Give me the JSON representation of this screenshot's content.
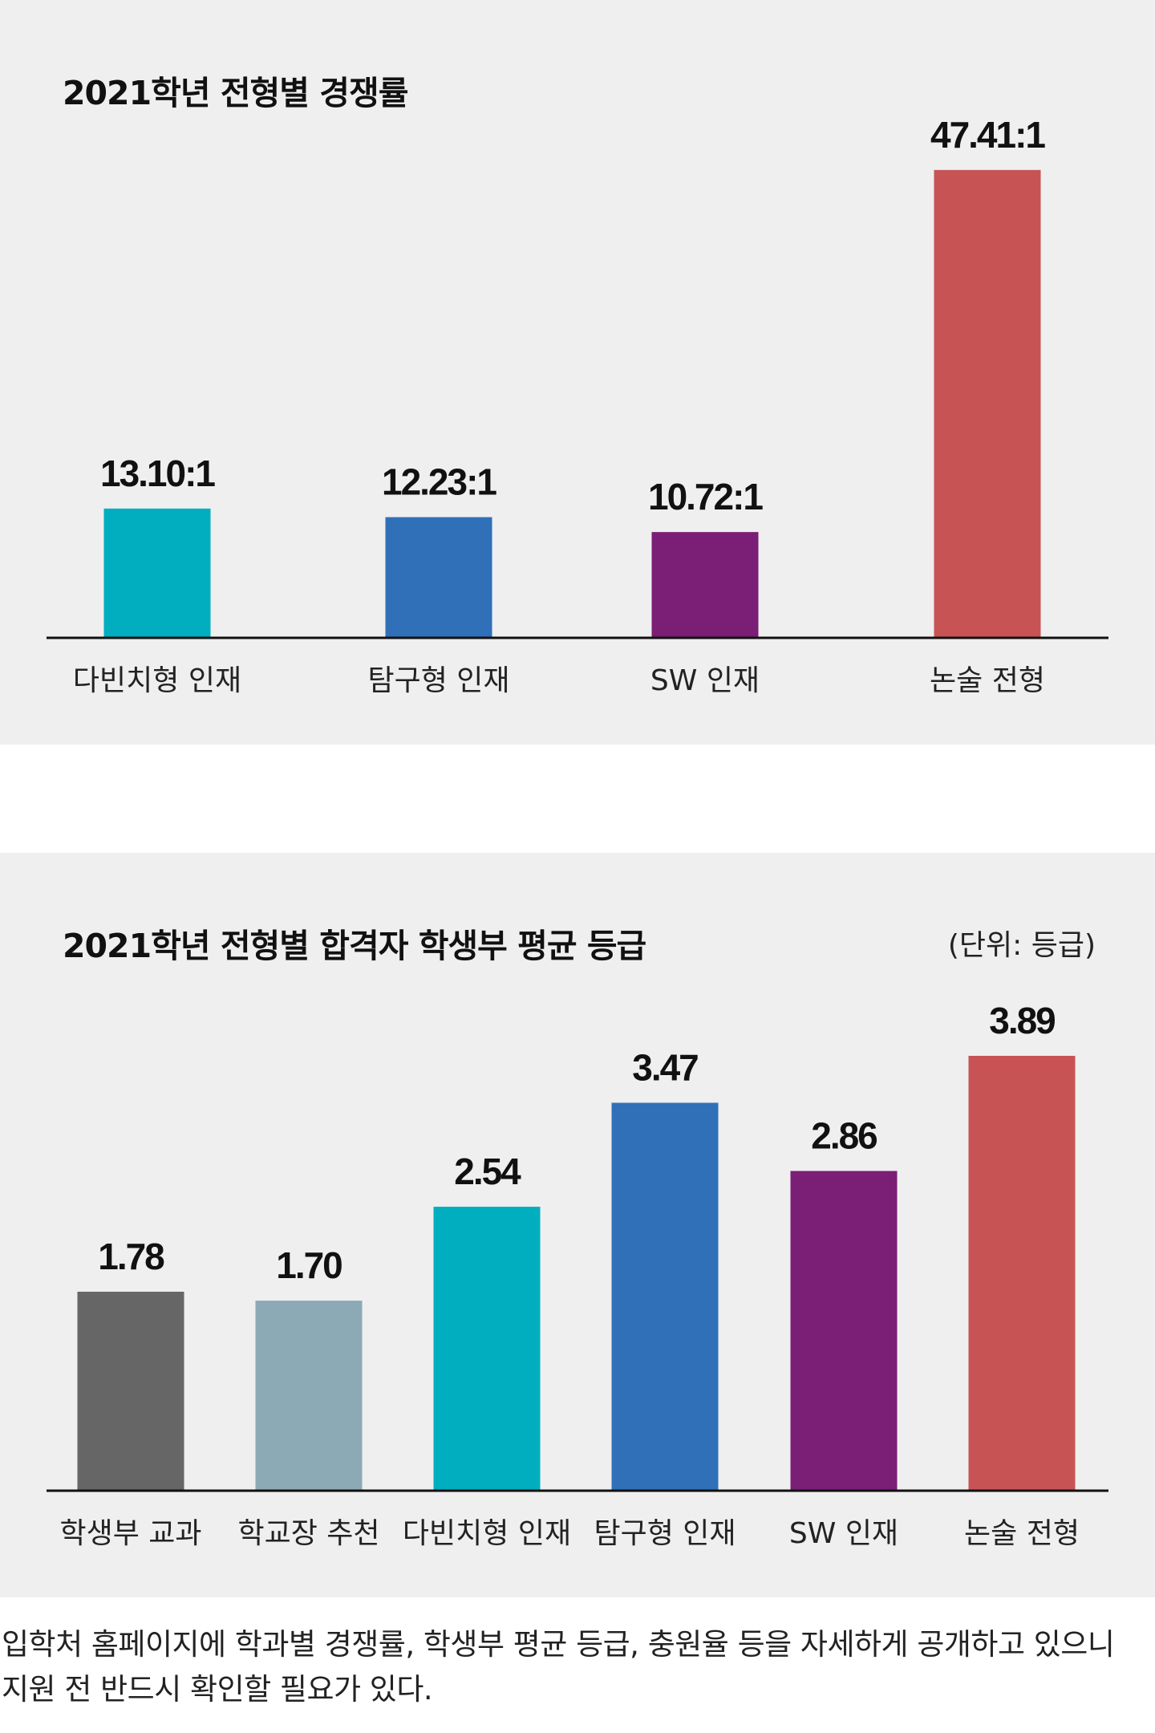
{
  "caption": "입학처 홈페이지에 학과별 경쟁률, 학생부 평균 등급, 충원율 등을 자세하게 공개하고 있으니 지원 전 반드시 확인할 필요가 있다.",
  "chart_data": [
    {
      "type": "bar",
      "title": "2021학년 전형별 경쟁률",
      "categories": [
        "다빈치형 인재",
        "탐구형 인재",
        "SW 인재",
        "논술 전형"
      ],
      "values": [
        13.1,
        12.23,
        10.72,
        47.41
      ],
      "value_labels": [
        "13.10:1",
        "12.23:1",
        "10.72:1",
        "47.41:1"
      ],
      "colors": [
        "#00aec0",
        "#3070b8",
        "#7a1e76",
        "#c85355"
      ],
      "ylim": [
        0,
        50
      ],
      "grid": false
    },
    {
      "type": "bar",
      "title": "2021학년 전형별 합격자 학생부 평균 등급",
      "unit": "(단위: 등급)",
      "categories": [
        "학생부 교과",
        "학교장 추천",
        "다빈치형 인재",
        "탐구형 인재",
        "SW 인재",
        "논술 전형"
      ],
      "values": [
        1.78,
        1.7,
        2.54,
        3.47,
        2.86,
        3.89
      ],
      "value_labels": [
        "1.78",
        "1.70",
        "2.54",
        "3.47",
        "2.86",
        "3.89"
      ],
      "colors": [
        "#666666",
        "#8ca9b6",
        "#00aec0",
        "#3070b8",
        "#7a1e76",
        "#c85355"
      ],
      "ylim": [
        0,
        4.5
      ],
      "grid": false
    }
  ]
}
